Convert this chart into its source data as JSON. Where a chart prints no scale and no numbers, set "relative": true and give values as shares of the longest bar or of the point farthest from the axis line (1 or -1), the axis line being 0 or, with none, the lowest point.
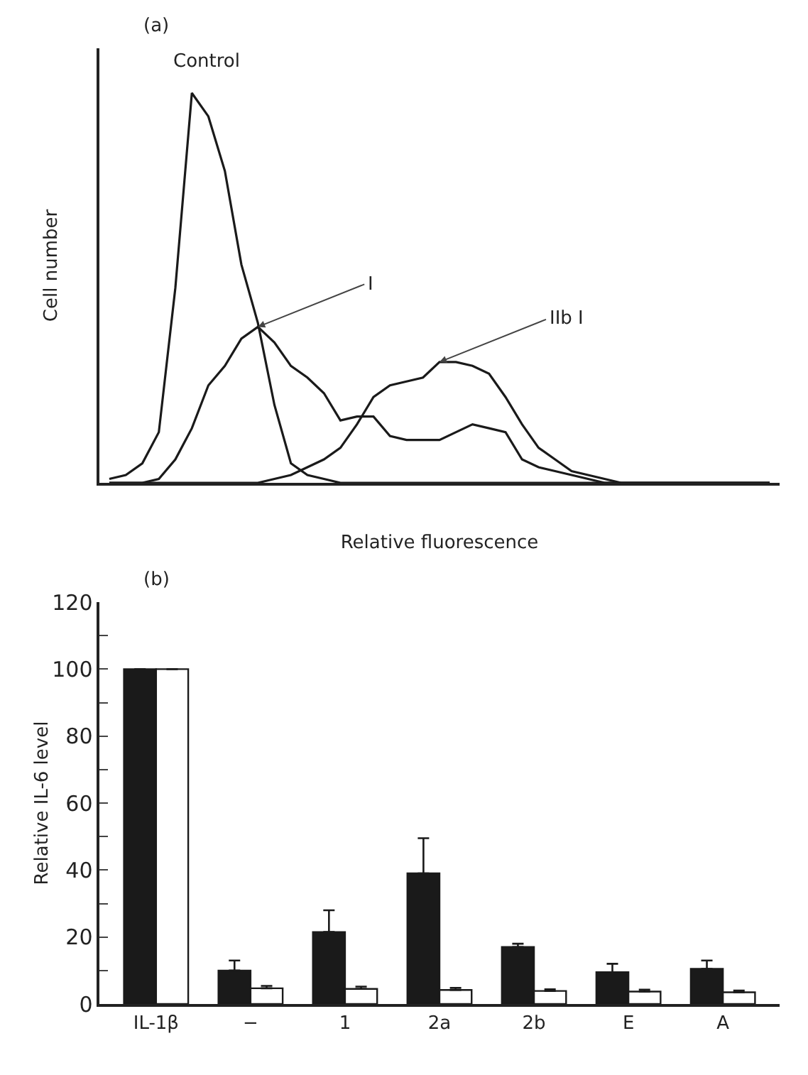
{
  "chart_data": [
    {
      "type": "line",
      "title": "(a)",
      "xlabel": "Relative fluorescence",
      "ylabel": "Cell number",
      "relative": true,
      "categories": [
        null,
        null,
        null,
        null,
        null,
        null,
        null,
        null,
        null,
        null,
        null,
        null,
        null,
        null,
        null,
        null,
        null,
        null,
        null,
        null,
        null,
        null,
        null,
        null,
        null,
        null,
        null,
        null,
        null,
        null,
        null,
        null,
        null,
        null,
        null,
        null,
        null,
        null,
        null,
        null,
        null
      ],
      "series": [
        {
          "name": "Control",
          "color": "#1a1a1a",
          "values": [
            0.01,
            0.02,
            0.05,
            0.13,
            0.5,
            1.0,
            0.94,
            0.8,
            0.56,
            0.41,
            0.2,
            0.05,
            0.02,
            0.01,
            0,
            0,
            0,
            0,
            0,
            0,
            0,
            0,
            0,
            0,
            0,
            0,
            0,
            0,
            0,
            0,
            0,
            0,
            0,
            0,
            0,
            0,
            0,
            0,
            0,
            0,
            0
          ]
        },
        {
          "name": "I",
          "color": "#1a1a1a",
          "values": [
            0,
            0,
            0,
            0.01,
            0.06,
            0.14,
            0.25,
            0.3,
            0.37,
            0.4,
            0.36,
            0.3,
            0.27,
            0.23,
            0.16,
            0.17,
            0.17,
            0.12,
            0.11,
            0.11,
            0.11,
            0.13,
            0.15,
            0.14,
            0.13,
            0.06,
            0.04,
            0.03,
            0.02,
            0.01,
            0,
            0,
            0,
            0,
            0,
            0,
            0,
            0,
            0,
            0,
            0
          ]
        },
        {
          "name": "IIb I",
          "color": "#1a1a1a",
          "values": [
            0,
            0,
            0,
            0,
            0,
            0,
            0,
            0,
            0,
            0,
            0.01,
            0.02,
            0.04,
            0.06,
            0.09,
            0.15,
            0.22,
            0.25,
            0.26,
            0.27,
            0.31,
            0.31,
            0.3,
            0.28,
            0.22,
            0.15,
            0.09,
            0.06,
            0.03,
            0.02,
            0.01,
            0,
            0,
            0,
            0,
            0,
            0,
            0,
            0,
            0,
            0
          ]
        }
      ]
    },
    {
      "type": "bar",
      "title": "(b)",
      "ylabel": "Relative IL-6 level",
      "categories": [
        "IL-1β",
        "−",
        "1",
        "2a",
        "2b",
        "E",
        "A"
      ],
      "ylim": [
        0,
        120
      ],
      "yticks": [
        0,
        {
          "value": 10,
          "label": null
        },
        20,
        {
          "value": 30,
          "label": null
        },
        40,
        {
          "value": 50,
          "label": null
        },
        60,
        {
          "value": 70,
          "label": null
        },
        80,
        {
          "value": 90,
          "label": null
        },
        100,
        {
          "value": 110,
          "label": null
        },
        120
      ],
      "series": [
        {
          "color": "#1a1a1a",
          "values": [
            100,
            10,
            21.5,
            39,
            17,
            9.5,
            10.5
          ],
          "errors": [
            null,
            [
              10,
              13
            ],
            [
              21.5,
              28
            ],
            [
              39,
              49.5
            ],
            [
              17,
              18
            ],
            [
              9.5,
              12
            ],
            [
              10.5,
              13
            ]
          ]
        },
        {
          "color": "#ffffff",
          "values": [
            100,
            4.7,
            4.5,
            4.2,
            3.9,
            3.7,
            3.5
          ],
          "errors": [
            null,
            [
              4.7,
              5.4
            ],
            [
              4.5,
              5.2
            ],
            [
              4.2,
              4.8
            ],
            [
              3.9,
              4.4
            ],
            [
              3.7,
              4.3
            ],
            [
              3.5,
              4.0
            ]
          ]
        }
      ]
    }
  ]
}
